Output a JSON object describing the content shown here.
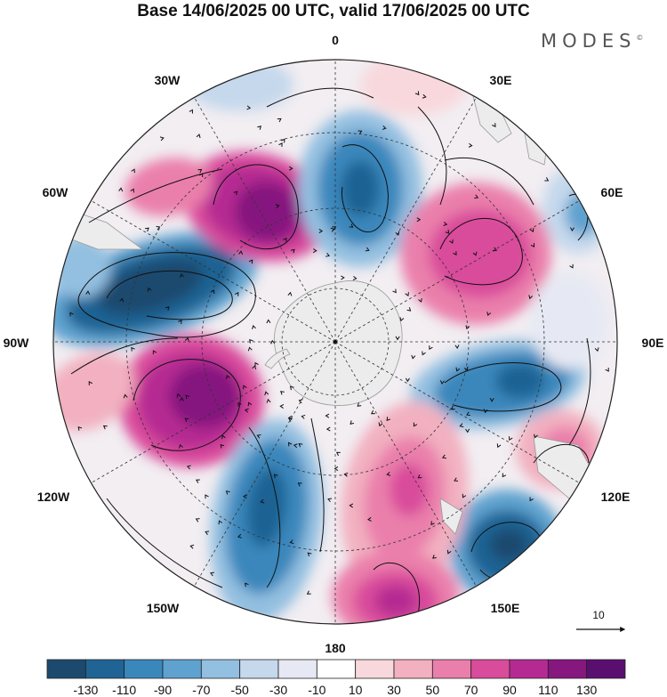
{
  "title": "Base 14/06/2025 00 UTC, valid 17/06/2025 00 UTC",
  "brand": "MODES",
  "brand_mark": "©",
  "longitude_labels": {
    "top": "0",
    "n30e": "30E",
    "n60e": "60E",
    "e90": "90E",
    "s120e": "120E",
    "s150e": "150E",
    "bottom": "180",
    "s150w": "150W",
    "s120w": "120W",
    "w90": "90W",
    "n60w": "60W",
    "n30w": "30W"
  },
  "vector_reference": {
    "label": "10"
  },
  "colorbar": {
    "tick_labels": [
      "-130",
      "-110",
      "-90",
      "-70",
      "-50",
      "-30",
      "-10",
      "10",
      "30",
      "50",
      "70",
      "90",
      "110",
      "130"
    ],
    "colors": [
      "#1c4a6e",
      "#1f6494",
      "#3a87bc",
      "#5fa2cf",
      "#93bfe0",
      "#c5d8ec",
      "#e6e9f3",
      "#ffffff",
      "#f8d8dc",
      "#f2b0c0",
      "#ea7fab",
      "#d94b9b",
      "#b52a92",
      "#86177f",
      "#5a0f70"
    ]
  },
  "legend_colors": {
    "land": "#e8e8e8",
    "graticule": "#333333",
    "streamline": "#111111"
  }
}
